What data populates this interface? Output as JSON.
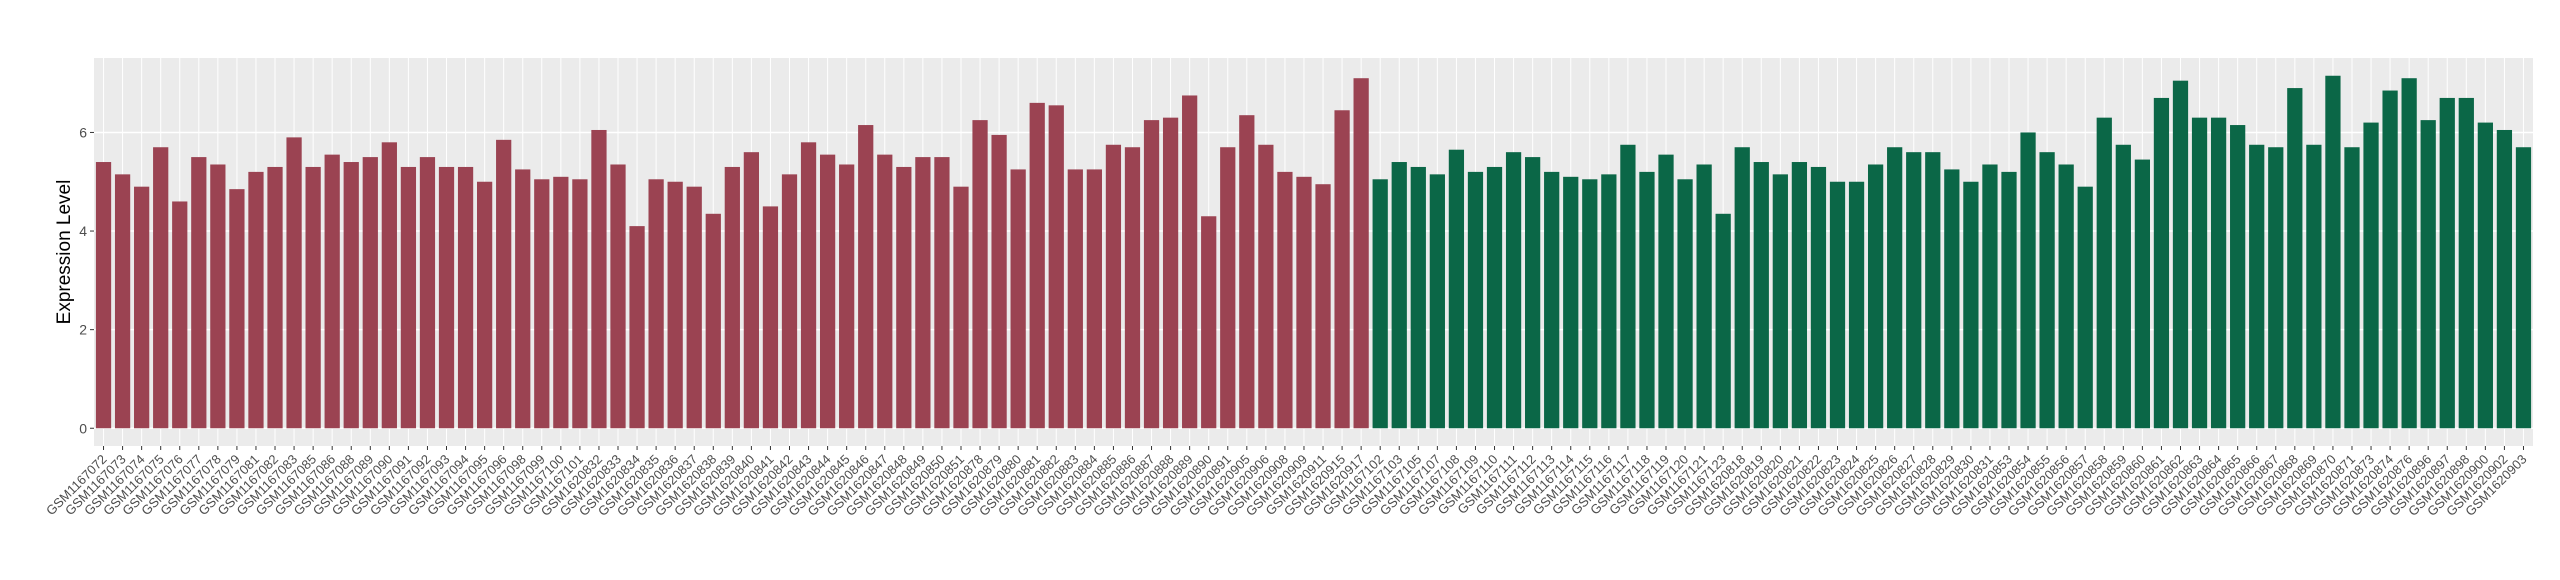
{
  "chart_data": {
    "type": "bar",
    "y_label": "Expression Level",
    "ylim": [
      -0.36,
      7.51
    ],
    "yticks": [
      0,
      2,
      4,
      6
    ],
    "grid": true,
    "series": [
      {
        "color": "#9b4352",
        "categories": [
          "GSM1167072",
          "GSM1167073",
          "GSM1167074",
          "GSM1167075",
          "GSM1167076",
          "GSM1167077",
          "GSM1167078",
          "GSM1167079",
          "GSM1167081",
          "GSM1167082",
          "GSM1167083",
          "GSM1167085",
          "GSM1167086",
          "GSM1167088",
          "GSM1167089",
          "GSM1167090",
          "GSM1167091",
          "GSM1167092",
          "GSM1167093",
          "GSM1167094",
          "GSM1167095",
          "GSM1167096",
          "GSM1167098",
          "GSM1167099",
          "GSM1167100",
          "GSM1167101",
          "GSM1620832",
          "GSM1620833",
          "GSM1620834",
          "GSM1620835",
          "GSM1620836",
          "GSM1620837",
          "GSM1620838",
          "GSM1620839",
          "GSM1620840",
          "GSM1620841",
          "GSM1620842",
          "GSM1620843",
          "GSM1620844",
          "GSM1620845",
          "GSM1620846",
          "GSM1620847",
          "GSM1620848",
          "GSM1620849",
          "GSM1620850",
          "GSM1620851",
          "GSM1620878",
          "GSM1620879",
          "GSM1620880",
          "GSM1620881",
          "GSM1620882",
          "GSM1620883",
          "GSM1620884",
          "GSM1620885",
          "GSM1620886",
          "GSM1620887",
          "GSM1620888",
          "GSM1620889",
          "GSM1620890",
          "GSM1620891",
          "GSM1620905",
          "GSM1620906",
          "GSM1620908",
          "GSM1620909",
          "GSM1620911",
          "GSM1620915",
          "GSM1620917"
        ],
        "values": [
          5.4,
          5.15,
          4.9,
          5.7,
          4.6,
          5.5,
          5.35,
          4.85,
          5.2,
          5.3,
          5.9,
          5.3,
          5.55,
          5.4,
          5.5,
          5.8,
          5.3,
          5.5,
          5.3,
          5.3,
          5.0,
          5.85,
          5.25,
          5.05,
          5.1,
          5.05,
          6.05,
          5.35,
          4.1,
          5.05,
          5.0,
          4.9,
          4.35,
          5.3,
          5.6,
          4.5,
          5.15,
          5.8,
          5.55,
          5.35,
          6.15,
          5.55,
          5.3,
          5.5,
          5.5,
          4.9,
          6.25,
          5.95,
          5.25,
          6.6,
          6.55,
          5.25,
          5.25,
          5.75,
          5.7,
          6.25,
          6.3,
          6.75,
          4.3,
          5.7,
          6.35,
          5.75,
          5.2,
          5.1,
          4.95,
          6.45,
          7.1
        ]
      },
      {
        "color": "#0b6747",
        "categories": [
          "GSM1167102",
          "GSM1167103",
          "GSM1167105",
          "GSM1167107",
          "GSM1167108",
          "GSM1167109",
          "GSM1167110",
          "GSM1167111",
          "GSM1167112",
          "GSM1167113",
          "GSM1167114",
          "GSM1167115",
          "GSM1167116",
          "GSM1167117",
          "GSM1167118",
          "GSM1167119",
          "GSM1167120",
          "GSM1167121",
          "GSM1167123",
          "GSM1620818",
          "GSM1620819",
          "GSM1620820",
          "GSM1620821",
          "GSM1620822",
          "GSM1620823",
          "GSM1620824",
          "GSM1620825",
          "GSM1620826",
          "GSM1620827",
          "GSM1620828",
          "GSM1620829",
          "GSM1620830",
          "GSM1620831",
          "GSM1620853",
          "GSM1620854",
          "GSM1620855",
          "GSM1620856",
          "GSM1620857",
          "GSM1620858",
          "GSM1620859",
          "GSM1620860",
          "GSM1620861",
          "GSM1620862",
          "GSM1620863",
          "GSM1620864",
          "GSM1620865",
          "GSM1620866",
          "GSM1620867",
          "GSM1620868",
          "GSM1620869",
          "GSM1620870",
          "GSM1620871",
          "GSM1620873",
          "GSM1620874",
          "GSM1620876",
          "GSM1620896",
          "GSM1620897",
          "GSM1620898",
          "GSM1620900",
          "GSM1620902",
          "GSM1620903"
        ],
        "values": [
          5.05,
          5.4,
          5.3,
          5.15,
          5.65,
          5.2,
          5.3,
          5.6,
          5.5,
          5.2,
          5.1,
          5.05,
          5.15,
          5.75,
          5.2,
          5.55,
          5.05,
          5.35,
          4.35,
          5.7,
          5.4,
          5.15,
          5.4,
          5.3,
          5.0,
          5.0,
          5.35,
          5.7,
          5.6,
          5.6,
          5.25,
          5.0,
          5.35,
          5.2,
          6.0,
          5.6,
          5.35,
          4.9,
          6.3,
          5.75,
          5.45,
          6.7,
          7.05,
          6.3,
          6.3,
          6.15,
          5.75,
          5.7,
          6.9,
          5.75,
          7.15,
          5.7,
          6.2,
          6.85,
          7.1,
          6.25,
          6.7,
          6.7,
          6.2,
          6.05,
          5.7
        ]
      }
    ]
  }
}
